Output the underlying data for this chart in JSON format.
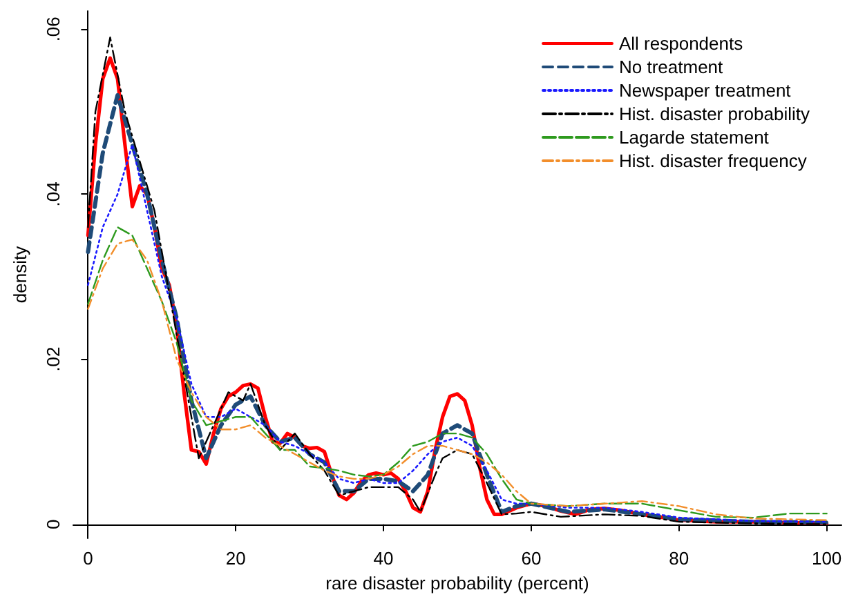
{
  "chart_data": {
    "type": "line",
    "xlabel": "rare disaster probability (percent)",
    "ylabel": "density",
    "xlim": [
      -2,
      102
    ],
    "ylim": [
      -0.0017,
      0.0622
    ],
    "xticks": [
      0,
      20,
      40,
      60,
      80,
      100
    ],
    "yticks": [
      0,
      {
        "value": 0.02,
        "label": ".02"
      },
      {
        "value": 0.04,
        "label": ".04"
      },
      {
        "value": 0.06,
        "label": ".06"
      }
    ],
    "grid": false,
    "legend": "top right",
    "marker": "none",
    "series": [
      {
        "name": "All respondents",
        "color": "#ff0000",
        "line_style": "solid",
        "x": [
          0,
          1,
          2,
          3,
          4,
          5,
          6,
          7,
          8,
          9,
          10,
          11,
          12,
          13,
          14,
          15,
          16,
          17,
          18,
          19,
          20,
          21,
          22,
          23,
          24,
          25,
          26,
          27,
          28,
          29,
          30,
          31,
          32,
          33,
          34,
          35,
          36,
          37,
          38,
          39,
          40,
          41,
          42,
          43,
          44,
          45,
          46,
          47,
          48,
          49,
          50,
          51,
          52,
          53,
          54,
          55,
          56,
          58,
          60,
          62,
          64,
          66,
          68,
          70,
          72,
          75,
          78,
          80,
          85,
          90,
          95,
          100
        ],
        "values": [
          0.035,
          0.046,
          0.054,
          0.0565,
          0.054,
          0.046,
          0.0385,
          0.041,
          0.04,
          0.036,
          0.031,
          0.029,
          0.024,
          0.016,
          0.009,
          0.0088,
          0.0073,
          0.011,
          0.014,
          0.0155,
          0.016,
          0.0168,
          0.017,
          0.0165,
          0.013,
          0.01,
          0.0098,
          0.011,
          0.0105,
          0.0095,
          0.0092,
          0.0093,
          0.0088,
          0.006,
          0.0035,
          0.003,
          0.0038,
          0.0052,
          0.006,
          0.0062,
          0.006,
          0.0062,
          0.0055,
          0.004,
          0.002,
          0.0015,
          0.004,
          0.009,
          0.013,
          0.0155,
          0.0158,
          0.015,
          0.012,
          0.007,
          0.003,
          0.0012,
          0.0012,
          0.002,
          0.0025,
          0.0022,
          0.0016,
          0.0012,
          0.0018,
          0.0019,
          0.0017,
          0.0012,
          0.0008,
          0.0005,
          0.0003,
          0.0003,
          0.0002,
          0.0001
        ]
      },
      {
        "name": "No treatment",
        "color": "#1f4b78",
        "line_style": "dashed",
        "x": [
          0,
          2,
          4,
          6,
          8,
          10,
          12,
          14,
          16,
          18,
          20,
          22,
          24,
          26,
          28,
          30,
          32,
          34,
          36,
          38,
          40,
          42,
          44,
          46,
          48,
          50,
          52,
          54,
          56,
          58,
          60,
          65,
          70,
          75,
          80,
          90,
          100
        ],
        "values": [
          0.033,
          0.045,
          0.052,
          0.046,
          0.04,
          0.032,
          0.025,
          0.015,
          0.008,
          0.012,
          0.0145,
          0.0155,
          0.012,
          0.01,
          0.0105,
          0.0085,
          0.0075,
          0.004,
          0.004,
          0.0055,
          0.0055,
          0.0052,
          0.004,
          0.006,
          0.011,
          0.012,
          0.011,
          0.006,
          0.0015,
          0.0022,
          0.0025,
          0.0015,
          0.0018,
          0.0012,
          0.0006,
          0.0003,
          0.0002
        ]
      },
      {
        "name": "Newspaper treatment",
        "color": "#1a1aff",
        "line_style": "dotted",
        "x": [
          0,
          2,
          4,
          6,
          8,
          10,
          12,
          14,
          16,
          18,
          20,
          22,
          24,
          26,
          28,
          30,
          32,
          34,
          36,
          38,
          40,
          42,
          44,
          46,
          48,
          50,
          52,
          54,
          56,
          58,
          60,
          65,
          70,
          75,
          80,
          90,
          100
        ],
        "values": [
          0.029,
          0.036,
          0.04,
          0.046,
          0.038,
          0.03,
          0.025,
          0.017,
          0.013,
          0.013,
          0.014,
          0.013,
          0.012,
          0.01,
          0.0095,
          0.0085,
          0.0075,
          0.0055,
          0.005,
          0.0055,
          0.005,
          0.005,
          0.0065,
          0.0085,
          0.01,
          0.0105,
          0.0095,
          0.0065,
          0.003,
          0.0025,
          0.0025,
          0.002,
          0.002,
          0.0015,
          0.0008,
          0.0004,
          0.0003
        ]
      },
      {
        "name": "Hist. disaster probability",
        "color": "#000000",
        "line_style": "dashed",
        "x": [
          0,
          1,
          3,
          5,
          7,
          9,
          11,
          13,
          15,
          17,
          19,
          21,
          22,
          24,
          26,
          28,
          30,
          32,
          34,
          36,
          38,
          40,
          42,
          44,
          45,
          47,
          48,
          50,
          52,
          54,
          56,
          58,
          60,
          64,
          70,
          75,
          80,
          90,
          100
        ],
        "values": [
          0.036,
          0.05,
          0.059,
          0.05,
          0.044,
          0.038,
          0.028,
          0.018,
          0.008,
          0.012,
          0.016,
          0.015,
          0.017,
          0.012,
          0.009,
          0.011,
          0.0085,
          0.0065,
          0.0035,
          0.004,
          0.0045,
          0.0045,
          0.0045,
          0.003,
          0.0015,
          0.006,
          0.008,
          0.009,
          0.0085,
          0.005,
          0.0012,
          0.0013,
          0.0015,
          0.0009,
          0.0012,
          0.001,
          0.0003,
          0.0001,
          0
        ]
      },
      {
        "name": "Lagarde statement",
        "color": "#2e9a1e",
        "line_style": "dashed",
        "x": [
          0,
          2,
          4,
          6,
          8,
          10,
          12,
          14,
          16,
          18,
          20,
          22,
          24,
          26,
          28,
          30,
          32,
          34,
          36,
          38,
          40,
          42,
          44,
          46,
          48,
          50,
          52,
          54,
          56,
          58,
          60,
          65,
          70,
          75,
          80,
          85,
          90,
          95,
          100
        ],
        "values": [
          0.0267,
          0.032,
          0.036,
          0.035,
          0.031,
          0.027,
          0.022,
          0.015,
          0.012,
          0.0125,
          0.013,
          0.013,
          0.011,
          0.009,
          0.009,
          0.007,
          0.0068,
          0.0065,
          0.006,
          0.0058,
          0.006,
          0.0075,
          0.0095,
          0.01,
          0.011,
          0.011,
          0.0105,
          0.0085,
          0.0055,
          0.003,
          0.0025,
          0.0022,
          0.0025,
          0.0025,
          0.0017,
          0.0009,
          0.0008,
          0.0013,
          0.0013
        ]
      },
      {
        "name": "Hist. disaster frequency",
        "color": "#f28e2b",
        "line_style": "dashed",
        "x": [
          0,
          2,
          4,
          6,
          8,
          10,
          12,
          14,
          16,
          18,
          20,
          22,
          24,
          26,
          28,
          30,
          32,
          34,
          36,
          38,
          40,
          42,
          44,
          46,
          48,
          50,
          52,
          54,
          56,
          58,
          60,
          65,
          70,
          75,
          80,
          85,
          90,
          95,
          100
        ],
        "values": [
          0.0261,
          0.031,
          0.034,
          0.0345,
          0.032,
          0.027,
          0.02,
          0.016,
          0.013,
          0.0115,
          0.0115,
          0.012,
          0.0105,
          0.0095,
          0.0085,
          0.0075,
          0.0065,
          0.0058,
          0.0055,
          0.0055,
          0.006,
          0.007,
          0.0085,
          0.0095,
          0.0095,
          0.009,
          0.0085,
          0.0075,
          0.006,
          0.004,
          0.0025,
          0.0022,
          0.0025,
          0.0028,
          0.0022,
          0.0012,
          0.0007,
          0.0006,
          0.0005
        ]
      }
    ]
  }
}
